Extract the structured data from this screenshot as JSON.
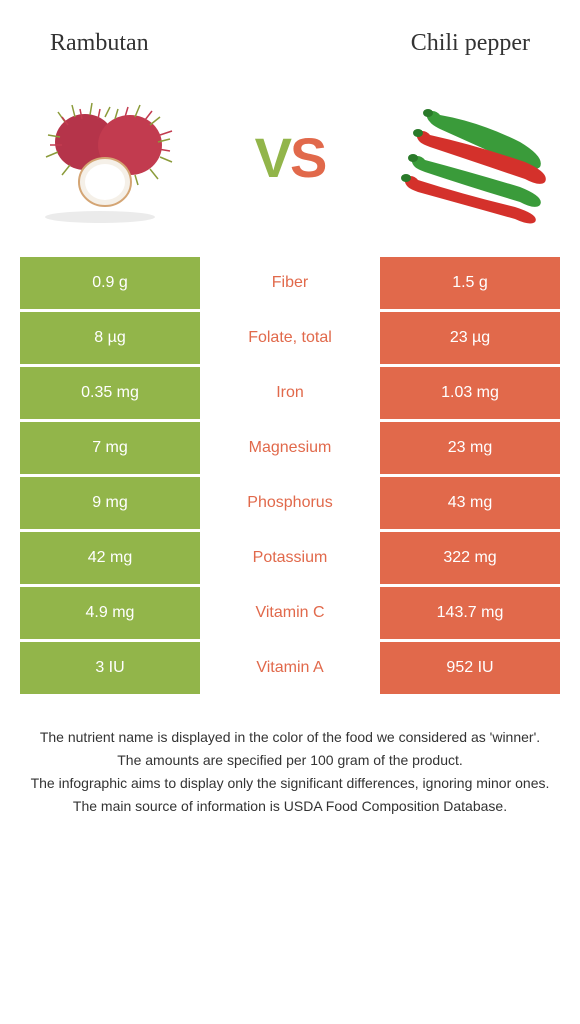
{
  "header": {
    "left_title": "Rambutan",
    "right_title": "Chili pepper"
  },
  "vs": {
    "v": "V",
    "s": "S"
  },
  "colors": {
    "left_bg": "#92b54a",
    "right_bg": "#e1694b",
    "left_text": "#92b54a",
    "right_text": "#e1694b",
    "footer_text": "#333333"
  },
  "nutrients": [
    {
      "name": "Fiber",
      "left": "0.9 g",
      "right": "1.5 g",
      "winner": "right"
    },
    {
      "name": "Folate, total",
      "left": "8 µg",
      "right": "23 µg",
      "winner": "right"
    },
    {
      "name": "Iron",
      "left": "0.35 mg",
      "right": "1.03 mg",
      "winner": "right"
    },
    {
      "name": "Magnesium",
      "left": "7 mg",
      "right": "23 mg",
      "winner": "right"
    },
    {
      "name": "Phosphorus",
      "left": "9 mg",
      "right": "43 mg",
      "winner": "right"
    },
    {
      "name": "Potassium",
      "left": "42 mg",
      "right": "322 mg",
      "winner": "right"
    },
    {
      "name": "Vitamin C",
      "left": "4.9 mg",
      "right": "143.7 mg",
      "winner": "right"
    },
    {
      "name": "Vitamin A",
      "left": "3 IU",
      "right": "952 IU",
      "winner": "right"
    }
  ],
  "footer": {
    "line1": "The nutrient name is displayed in the color of the food we considered as 'winner'.",
    "line2": "The amounts are specified per 100 gram of the product.",
    "line3": "The infographic aims to display only the significant differences, ignoring minor ones.",
    "line4": "The main source of information is USDA Food Composition Database."
  }
}
